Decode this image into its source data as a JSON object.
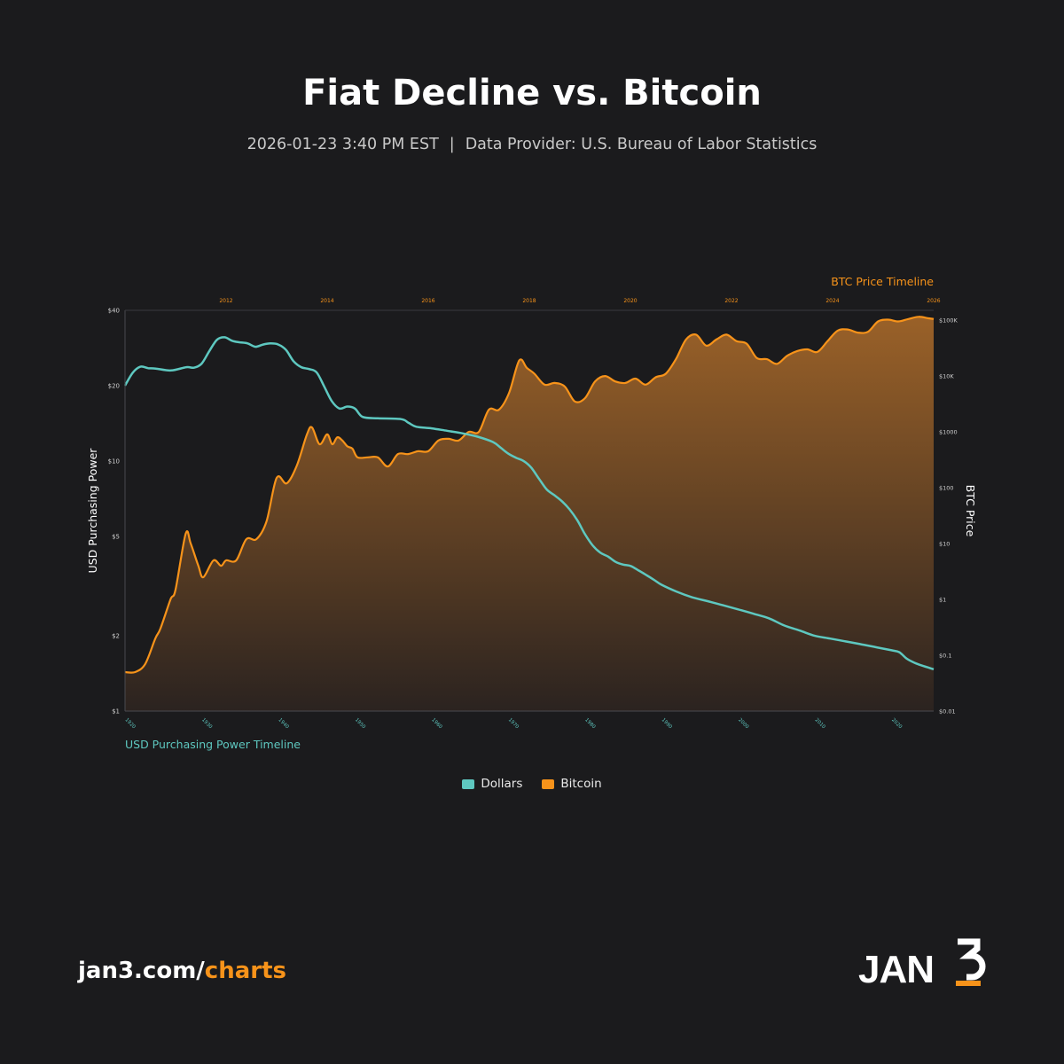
{
  "header": {
    "title": "Fiat Decline vs. Bitcoin",
    "timestamp": "2026-01-23 3:40 PM EST",
    "separator": "|",
    "provider": "Data Provider: U.S. Bureau of Labor Statistics"
  },
  "colors": {
    "background": "#1b1b1d",
    "dollars": "#5ec8c0",
    "bitcoin": "#f7931a",
    "bitcoin_fill_top": "#9a6128",
    "bitcoin_fill_bottom": "#2b2320"
  },
  "chart_data": {
    "type": "area",
    "grid": false,
    "legend_position": "bottom-center",
    "y_left_label": "USD Purchasing Power",
    "y_right_label": "BTC Price",
    "x_bottom_label": "USD Purchasing Power Timeline",
    "x_top_label": "BTC Price Timeline",
    "x_bottom_ticks": [
      "1920",
      "1930",
      "1940",
      "1950",
      "1960",
      "1970",
      "1980",
      "1990",
      "2000",
      "2010",
      "2020"
    ],
    "x_bottom_range": [
      1920,
      2025.5
    ],
    "x_top_ticks": [
      "2012",
      "2014",
      "2016",
      "2018",
      "2020",
      "2022",
      "2024",
      "2026"
    ],
    "x_top_range": [
      2010.0,
      2026.0
    ],
    "y_left_ticks": [
      {
        "value": 1,
        "label": "$1"
      },
      {
        "value": 2,
        "label": "$2"
      },
      {
        "value": 5,
        "label": "$5"
      },
      {
        "value": 10,
        "label": "$10"
      },
      {
        "value": 20,
        "label": "$20"
      },
      {
        "value": 40,
        "label": "$40"
      }
    ],
    "y_left_scale": "log",
    "y_left_range": [
      1,
      40
    ],
    "y_right_ticks": [
      {
        "value": 0.01,
        "label": "$0.01"
      },
      {
        "value": 0.1,
        "label": "$0.1"
      },
      {
        "value": 1,
        "label": "$1"
      },
      {
        "value": 10,
        "label": "$10"
      },
      {
        "value": 100,
        "label": "$100"
      },
      {
        "value": 1000,
        "label": "$1000"
      },
      {
        "value": 10000,
        "label": "$10K"
      },
      {
        "value": 100000,
        "label": "$100K"
      }
    ],
    "y_right_scale": "log",
    "y_right_range": [
      0.01,
      150000
    ],
    "series": [
      {
        "name": "Dollars",
        "axis": "left",
        "x": [
          1920,
          1921,
          1922,
          1923,
          1924,
          1926,
          1928,
          1929,
          1930,
          1931,
          1932,
          1933,
          1934,
          1935,
          1936,
          1937,
          1938,
          1939,
          1940,
          1941,
          1942,
          1943,
          1944,
          1945,
          1946,
          1947,
          1948,
          1949,
          1950,
          1951,
          1953,
          1956,
          1957,
          1958,
          1960,
          1962,
          1964,
          1966,
          1968,
          1969,
          1970,
          1971,
          1972,
          1973,
          1974,
          1975,
          1976,
          1977,
          1978,
          1979,
          1980,
          1981,
          1982,
          1983,
          1984,
          1985,
          1986,
          1987,
          1988,
          1989,
          1990,
          1992,
          1994,
          1996,
          1998,
          2000,
          2002,
          2004,
          2006,
          2008,
          2010,
          2012,
          2014,
          2016,
          2018,
          2020,
          2021,
          2022,
          2023,
          2024,
          2025.5
        ],
        "y": [
          20.0,
          22.5,
          23.8,
          23.5,
          23.4,
          23.0,
          23.7,
          23.6,
          24.5,
          27.5,
          30.5,
          31.2,
          30.2,
          29.8,
          29.5,
          28.6,
          29.2,
          29.5,
          29.2,
          27.8,
          25.0,
          23.7,
          23.3,
          22.6,
          19.8,
          17.3,
          16.2,
          16.5,
          16.2,
          15.0,
          14.8,
          14.7,
          14.2,
          13.7,
          13.5,
          13.2,
          12.9,
          12.5,
          11.9,
          11.3,
          10.7,
          10.3,
          10.0,
          9.4,
          8.5,
          7.7,
          7.3,
          6.9,
          6.4,
          5.8,
          5.1,
          4.6,
          4.3,
          4.15,
          3.95,
          3.85,
          3.8,
          3.65,
          3.5,
          3.35,
          3.2,
          3.0,
          2.85,
          2.75,
          2.65,
          2.55,
          2.45,
          2.35,
          2.2,
          2.1,
          2.0,
          1.95,
          1.9,
          1.85,
          1.8,
          1.75,
          1.72,
          1.62,
          1.56,
          1.52,
          1.47
        ]
      },
      {
        "name": "Bitcoin",
        "axis": "right",
        "x": [
          2010.0,
          2010.2,
          2010.4,
          2010.6,
          2010.7,
          2010.9,
          2011.0,
          2011.2,
          2011.3,
          2011.45,
          2011.55,
          2011.75,
          2011.9,
          2012.0,
          2012.2,
          2012.4,
          2012.6,
          2012.8,
          2013.0,
          2013.2,
          2013.4,
          2013.6,
          2013.7,
          2013.85,
          2014.0,
          2014.1,
          2014.2,
          2014.3,
          2014.4,
          2014.5,
          2014.6,
          2014.8,
          2015.0,
          2015.2,
          2015.4,
          2015.6,
          2015.8,
          2016.0,
          2016.2,
          2016.4,
          2016.6,
          2016.8,
          2017.0,
          2017.2,
          2017.4,
          2017.6,
          2017.8,
          2017.95,
          2018.1,
          2018.3,
          2018.5,
          2018.7,
          2018.9,
          2019.1,
          2019.3,
          2019.5,
          2019.7,
          2019.9,
          2020.1,
          2020.3,
          2020.5,
          2020.7,
          2020.9,
          2021.1,
          2021.3,
          2021.5,
          2021.7,
          2021.9,
          2022.1,
          2022.3,
          2022.5,
          2022.7,
          2022.9,
          2023.1,
          2023.3,
          2023.5,
          2023.7,
          2023.9,
          2024.1,
          2024.3,
          2024.5,
          2024.7,
          2024.9,
          2025.1,
          2025.3,
          2025.5,
          2025.7,
          2025.9,
          2026.0
        ],
        "y": [
          0.05,
          0.05,
          0.07,
          0.2,
          0.3,
          1.0,
          1.5,
          15,
          10,
          4,
          2.5,
          5,
          4,
          5,
          5,
          12,
          12,
          25,
          150,
          120,
          250,
          900,
          1200,
          600,
          900,
          600,
          800,
          700,
          550,
          500,
          350,
          350,
          350,
          240,
          400,
          400,
          450,
          450,
          700,
          750,
          700,
          1000,
          1000,
          2500,
          2500,
          5000,
          19000,
          14000,
          11000,
          7000,
          7500,
          6500,
          3500,
          4000,
          8000,
          10000,
          8000,
          7500,
          9000,
          7000,
          9500,
          11000,
          20000,
          45000,
          55000,
          35000,
          45000,
          55000,
          42000,
          38000,
          21000,
          20000,
          16500,
          23000,
          28000,
          30000,
          27000,
          42000,
          65000,
          68000,
          60000,
          62000,
          95000,
          102000,
          95000,
          105000,
          115000,
          108000,
          105000
        ]
      }
    ]
  },
  "legend": {
    "items": [
      {
        "label": "Dollars",
        "color": "#5ec8c0"
      },
      {
        "label": "Bitcoin",
        "color": "#f7931a"
      }
    ]
  },
  "footer": {
    "url_prefix": "jan3.com/",
    "url_suffix": "charts",
    "logo_text": "JAN3"
  }
}
